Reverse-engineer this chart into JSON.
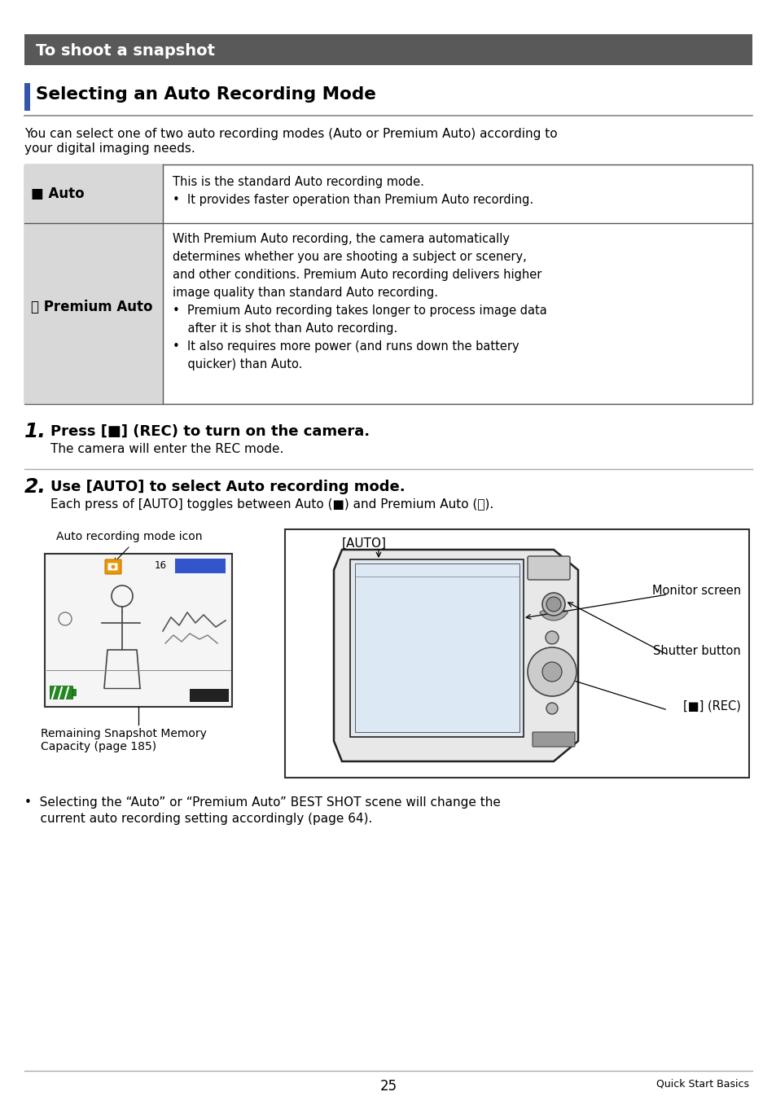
{
  "title_bar_text": "To shoot a snapshot",
  "title_bar_bg": "#595959",
  "title_bar_text_color": "#ffffff",
  "section_title": "Selecting an Auto Recording Mode",
  "intro_text_line1": "You can select one of two auto recording modes (Auto or Premium Auto) according to",
  "intro_text_line2": "your digital imaging needs.",
  "table_row1_label": "■ Auto",
  "table_row1_lines": [
    "This is the standard Auto recording mode.",
    "•  It provides faster operation than Premium Auto recording."
  ],
  "table_row2_label": "Ⓡ Premium Auto",
  "table_row2_lines": [
    "With Premium Auto recording, the camera automatically",
    "determines whether you are shooting a subject or scenery,",
    "and other conditions. Premium Auto recording delivers higher",
    "image quality than standard Auto recording.",
    "•  Premium Auto recording takes longer to process image data",
    "    after it is shot than Auto recording.",
    "•  It also requires more power (and runs down the battery",
    "    quicker) than Auto."
  ],
  "step1_num": "1.",
  "step1_bold": "Press [■] (REC) to turn on the camera.",
  "step1_sub": "The camera will enter the REC mode.",
  "step2_num": "2.",
  "step2_bold": "Use [AUTO] to select Auto recording mode.",
  "step2_sub": "Each press of [AUTO] toggles between Auto (■) and Premium Auto (Ⓡ).",
  "diag_label_icon": "Auto recording mode icon",
  "diag_label_mem": "Remaining Snapshot Memory\nCapacity (page 185)",
  "cam_label_auto": "[AUTO]",
  "cam_label_monitor": "Monitor screen",
  "cam_label_shutter": "Shutter button",
  "cam_label_rec": "[■] (REC)",
  "bullet_line1": "•  Selecting the “Auto” or “Premium Auto” BEST SHOT scene will change the",
  "bullet_line2": "    current auto recording setting accordingly (page 64).",
  "page_num": "25",
  "page_label": "Quick Start Basics",
  "bg_color": "#ffffff",
  "text_color": "#000000",
  "gray_cell": "#d8d8d8",
  "border_color": "#555555",
  "sidebar_color": "#3355aa",
  "line_color": "#999999"
}
